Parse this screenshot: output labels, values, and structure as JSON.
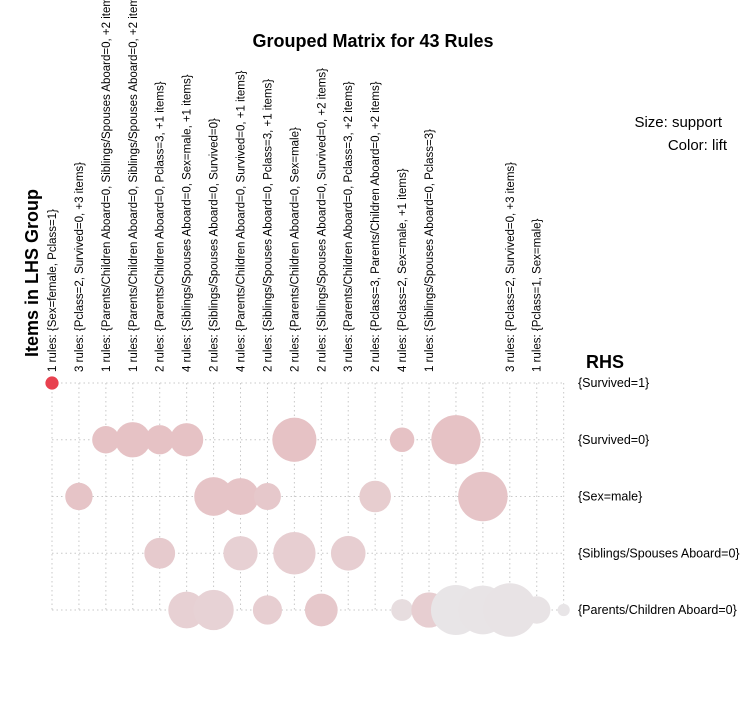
{
  "chart_data": {
    "type": "scatter",
    "title": "Grouped Matrix for 43 Rules",
    "xlabel": "Items in LHS Group",
    "ylabel": "RHS",
    "size_legend": "Size: support",
    "color_legend": "Color: lift",
    "colors": {
      "high": "#e8414f",
      "mid": "#e6c2c5",
      "low": "#e8e7e9",
      "grid": "#c8c8c8"
    },
    "grid": true,
    "lhs_groups": [
      "1 rules: {Sex=female, Pclass=1}",
      "3 rules: {Pclass=2, Survived=0, +3 items}",
      "1 rules: {Parents/Children Aboard=0, Siblings/Spouses Aboard=0, +2 items}",
      "1 rules: {Parents/Children Aboard=0, Siblings/Spouses Aboard=0, +2 items}",
      "2 rules: {Parents/Children Aboard=0, Pclass=3, +1 items}",
      "4 rules: {Siblings/Spouses Aboard=0, Sex=male, +1 items}",
      "2 rules: {Siblings/Spouses Aboard=0, Survived=0}",
      "4 rules: {Parents/Children Aboard=0, Survived=0, +1 items}",
      "2 rules: {Siblings/Spouses Aboard=0, Pclass=3, +1 items}",
      "2 rules: {Parents/Children Aboard=0, Sex=male}",
      "2 rules: {Siblings/Spouses Aboard=0, Survived=0, +2 items}",
      "3 rules: {Parents/Children Aboard=0, Pclass=3, +2 items}",
      "2 rules: {Pclass=3, Parents/Children Aboard=0, +2 items}",
      "4 rules: {Pclass=2, Sex=male, +1 items}",
      "1 rules: {Siblings/Spouses Aboard=0, Pclass=3}",
      "",
      "",
      "3 rules: {Pclass=2, Survived=0, +3 items}",
      "1 rules: {Pclass=1, Sex=male}"
    ],
    "rhs": [
      "{Survived=1}",
      "{Survived=0}",
      "{Sex=male}",
      "{Siblings/Spouses Aboard=0}",
      "{Parents/Children Aboard=0}"
    ],
    "points": [
      {
        "col": 0,
        "row": 0,
        "support": 0.07,
        "lift": 1.0
      },
      {
        "col": 2,
        "row": 1,
        "support": 0.3,
        "lift": 0.45
      },
      {
        "col": 3,
        "row": 1,
        "support": 0.5,
        "lift": 0.45
      },
      {
        "col": 4,
        "row": 1,
        "support": 0.34,
        "lift": 0.45
      },
      {
        "col": 5,
        "row": 1,
        "support": 0.44,
        "lift": 0.45
      },
      {
        "col": 9,
        "row": 1,
        "support": 0.78,
        "lift": 0.45
      },
      {
        "col": 13,
        "row": 1,
        "support": 0.24,
        "lift": 0.45
      },
      {
        "col": 15,
        "row": 1,
        "support": 0.97,
        "lift": 0.45
      },
      {
        "col": 1,
        "row": 2,
        "support": 0.3,
        "lift": 0.42
      },
      {
        "col": 6,
        "row": 2,
        "support": 0.6,
        "lift": 0.42
      },
      {
        "col": 7,
        "row": 2,
        "support": 0.54,
        "lift": 0.42
      },
      {
        "col": 8,
        "row": 2,
        "support": 0.29,
        "lift": 0.38
      },
      {
        "col": 12,
        "row": 2,
        "support": 0.4,
        "lift": 0.32
      },
      {
        "col": 16,
        "row": 2,
        "support": 0.98,
        "lift": 0.42
      },
      {
        "col": 4,
        "row": 3,
        "support": 0.38,
        "lift": 0.35
      },
      {
        "col": 7,
        "row": 3,
        "support": 0.47,
        "lift": 0.28
      },
      {
        "col": 9,
        "row": 3,
        "support": 0.72,
        "lift": 0.3
      },
      {
        "col": 11,
        "row": 3,
        "support": 0.48,
        "lift": 0.3
      },
      {
        "col": 5,
        "row": 4,
        "support": 0.54,
        "lift": 0.28
      },
      {
        "col": 6,
        "row": 4,
        "support": 0.65,
        "lift": 0.25
      },
      {
        "col": 8,
        "row": 4,
        "support": 0.34,
        "lift": 0.3
      },
      {
        "col": 10,
        "row": 4,
        "support": 0.43,
        "lift": 0.38
      },
      {
        "col": 13,
        "row": 4,
        "support": 0.19,
        "lift": 0.12
      },
      {
        "col": 14,
        "row": 4,
        "support": 0.5,
        "lift": 0.3
      },
      {
        "col": 15,
        "row": 4,
        "support": 1.0,
        "lift": 0.02
      },
      {
        "col": 16,
        "row": 4,
        "support": 0.95,
        "lift": 0.04
      },
      {
        "col": 17,
        "row": 4,
        "support": 1.15,
        "lift": 0.05
      },
      {
        "col": 18,
        "row": 4,
        "support": 0.3,
        "lift": 0.05
      },
      {
        "col": 19,
        "row": 4,
        "support": 0.06,
        "lift": 0.02
      }
    ]
  }
}
